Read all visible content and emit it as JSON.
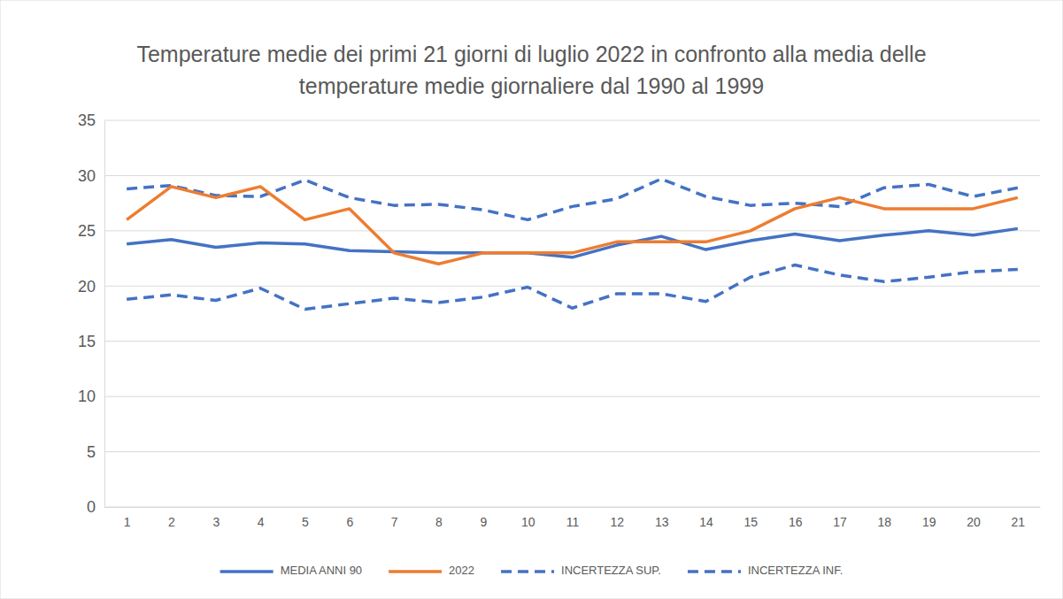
{
  "chart_data": {
    "type": "line",
    "title": "Temperature medie dei primi 21 giorni di luglio 2022 in confronto alla media delle temperature medie giornaliere dal 1990 al 1999",
    "categories": [
      "1",
      "2",
      "3",
      "4",
      "5",
      "6",
      "7",
      "8",
      "9",
      "10",
      "11",
      "12",
      "13",
      "14",
      "15",
      "16",
      "17",
      "18",
      "19",
      "20",
      "21"
    ],
    "series": [
      {
        "name": "MEDIA ANNI 90",
        "color": "#4472c4",
        "line_style": "solid",
        "values": [
          23.8,
          24.2,
          23.5,
          23.9,
          23.8,
          23.2,
          23.1,
          23.0,
          23.0,
          23.0,
          22.6,
          23.7,
          24.5,
          23.3,
          24.1,
          24.7,
          24.1,
          24.6,
          25.0,
          24.6,
          25.2
        ]
      },
      {
        "name": "2022",
        "color": "#ed7d31",
        "line_style": "solid",
        "values": [
          26,
          29,
          28,
          29,
          26,
          27,
          23,
          22,
          23,
          23,
          23,
          24,
          24,
          24,
          25,
          27,
          28,
          27,
          27,
          27,
          28
        ]
      },
      {
        "name": "INCERTEZZA SUP.",
        "color": "#4472c4",
        "line_style": "dashed",
        "values": [
          28.8,
          29.1,
          28.2,
          28.1,
          29.6,
          28.0,
          27.3,
          27.4,
          26.9,
          26.0,
          27.2,
          27.9,
          29.7,
          28.1,
          27.3,
          27.5,
          27.2,
          28.9,
          29.2,
          28.1,
          28.9
        ]
      },
      {
        "name": "INCERTEZZA INF.",
        "color": "#4472c4",
        "line_style": "dashed",
        "values": [
          18.8,
          19.2,
          18.7,
          19.8,
          17.9,
          18.4,
          18.9,
          18.5,
          19.0,
          19.9,
          18.0,
          19.3,
          19.3,
          18.6,
          20.8,
          21.9,
          21.0,
          20.4,
          20.8,
          21.3,
          21.5
        ]
      }
    ],
    "ylim": [
      0,
      35
    ],
    "yticks": [
      0,
      5,
      10,
      15,
      20,
      25,
      30,
      35
    ],
    "grid": true,
    "legend": "bottom"
  }
}
